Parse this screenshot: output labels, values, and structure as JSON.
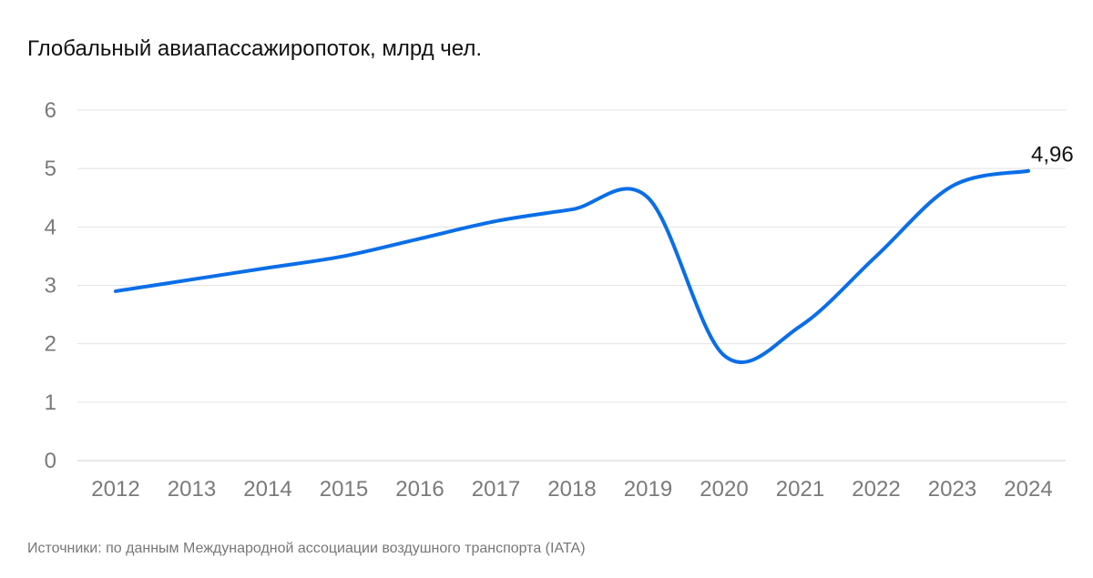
{
  "title": "Глобальный авиапассажиропоток, млрд чел.",
  "source": "Источники: по данным Международной ассоциации воздушного транспорта (IATA)",
  "chart_data": {
    "type": "line",
    "title": "Глобальный авиапассажиропоток, млрд чел.",
    "xlabel": "",
    "ylabel": "",
    "categories": [
      "2012",
      "2013",
      "2014",
      "2015",
      "2016",
      "2017",
      "2018",
      "2019",
      "2020",
      "2021",
      "2022",
      "2023",
      "2024"
    ],
    "series": [
      {
        "values": [
          2.9,
          3.1,
          3.3,
          3.5,
          3.8,
          4.1,
          4.3,
          4.5,
          1.8,
          2.3,
          3.5,
          4.7,
          4.96
        ],
        "color": "#0a6ee8"
      }
    ],
    "ylim": [
      0,
      6
    ],
    "yticks": [
      "0",
      "1",
      "2",
      "3",
      "4",
      "5",
      "6"
    ],
    "grid": true,
    "legend": "none",
    "annotations": [
      {
        "category": "2024",
        "value": 4.96,
        "text": "4,96"
      }
    ]
  }
}
